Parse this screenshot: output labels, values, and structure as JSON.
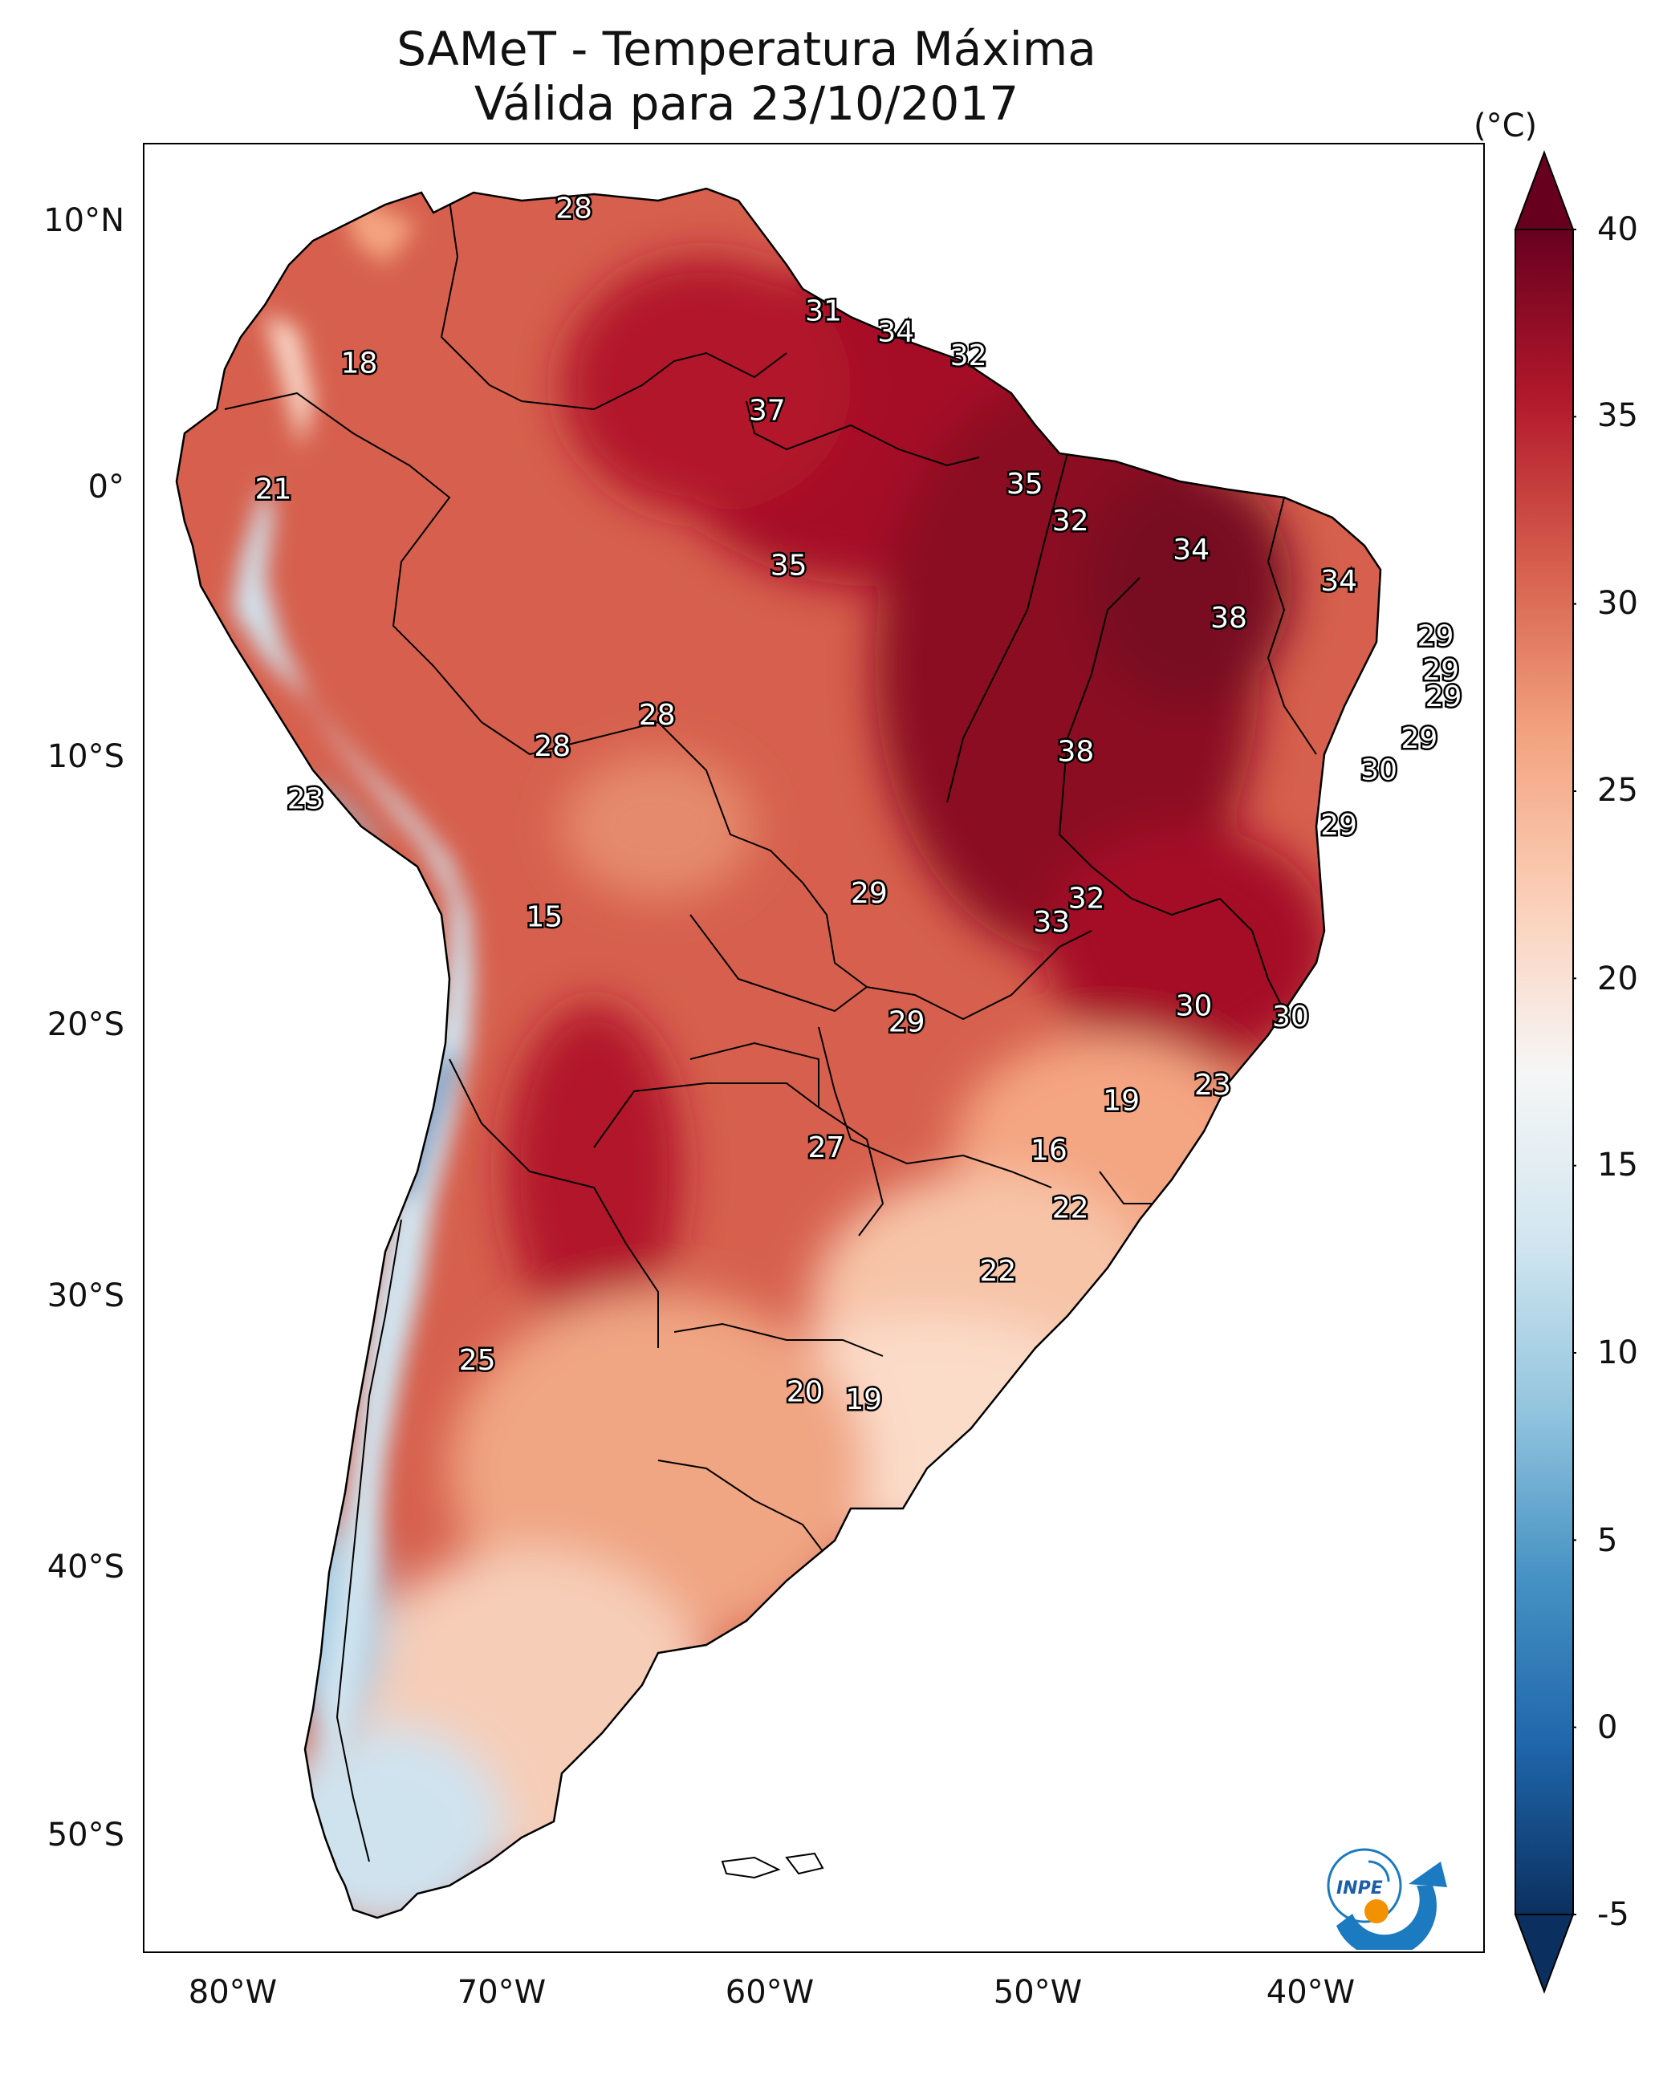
{
  "title": {
    "line1": "SAMeT - Temperatura Máxima",
    "line2": "Válida para 23/10/2017"
  },
  "colorbar": {
    "unit": "(°C)",
    "ticks": [
      "40",
      "35",
      "30",
      "25",
      "20",
      "15",
      "10",
      "5",
      "0",
      "-5"
    ],
    "colors": [
      "#0b305f",
      "#1f66ab",
      "#4692c4",
      "#93c5de",
      "#d2e6f0",
      "#f6f6f6",
      "#fbd0b9",
      "#f3a380",
      "#d65f4d",
      "#b2182b",
      "#67001f"
    ]
  },
  "axes": {
    "lat_labels": [
      "10°N",
      "0°",
      "10°S",
      "20°S",
      "30°S",
      "40°S",
      "50°S"
    ],
    "lon_labels": [
      "80°W",
      "70°W",
      "60°W",
      "50°W",
      "40°W"
    ]
  },
  "chart_data": {
    "type": "heatmap",
    "title": "SAMeT - Temperatura Máxima — Válida para 23/10/2017",
    "lon_range": [
      -83,
      -33
    ],
    "lat_range": [
      -56,
      13
    ],
    "value_range": [
      -5,
      40
    ],
    "station_values": [
      {
        "lon": -67.0,
        "lat": 10.5,
        "value": "28"
      },
      {
        "lon": -57.7,
        "lat": 6.6,
        "value": "31"
      },
      {
        "lon": -55.0,
        "lat": 5.8,
        "value": "34"
      },
      {
        "lon": -52.3,
        "lat": 4.9,
        "value": "32"
      },
      {
        "lon": -75.0,
        "lat": 4.6,
        "value": "18"
      },
      {
        "lon": -59.8,
        "lat": 2.8,
        "value": "37"
      },
      {
        "lon": -78.2,
        "lat": -0.2,
        "value": "21"
      },
      {
        "lon": -50.2,
        "lat": 0.0,
        "value": "35"
      },
      {
        "lon": -48.5,
        "lat": -1.4,
        "value": "32"
      },
      {
        "lon": -59.0,
        "lat": -3.1,
        "value": "35"
      },
      {
        "lon": -44.0,
        "lat": -2.5,
        "value": "34"
      },
      {
        "lon": -38.5,
        "lat": -3.7,
        "value": "34"
      },
      {
        "lon": -42.6,
        "lat": -5.1,
        "value": "38"
      },
      {
        "lon": -34.9,
        "lat": -5.8,
        "value": "29"
      },
      {
        "lon": -34.7,
        "lat": -7.1,
        "value": "29"
      },
      {
        "lon": -34.6,
        "lat": -8.1,
        "value": "29"
      },
      {
        "lon": -63.9,
        "lat": -8.8,
        "value": "28"
      },
      {
        "lon": -67.8,
        "lat": -10.0,
        "value": "28"
      },
      {
        "lon": -48.3,
        "lat": -10.2,
        "value": "38"
      },
      {
        "lon": -35.5,
        "lat": -9.7,
        "value": "29"
      },
      {
        "lon": -37.0,
        "lat": -10.9,
        "value": "30"
      },
      {
        "lon": -77.0,
        "lat": -12.0,
        "value": "23"
      },
      {
        "lon": -38.5,
        "lat": -13.0,
        "value": "29"
      },
      {
        "lon": -56.0,
        "lat": -15.6,
        "value": "29"
      },
      {
        "lon": -47.9,
        "lat": -15.8,
        "value": "32"
      },
      {
        "lon": -49.2,
        "lat": -16.7,
        "value": "33"
      },
      {
        "lon": -68.1,
        "lat": -16.5,
        "value": "15"
      },
      {
        "lon": -43.9,
        "lat": -19.9,
        "value": "30"
      },
      {
        "lon": -40.3,
        "lat": -20.3,
        "value": "30"
      },
      {
        "lon": -54.6,
        "lat": -20.5,
        "value": "29"
      },
      {
        "lon": -43.2,
        "lat": -22.9,
        "value": "23"
      },
      {
        "lon": -46.6,
        "lat": -23.5,
        "value": "19"
      },
      {
        "lon": -57.6,
        "lat": -25.3,
        "value": "27"
      },
      {
        "lon": -49.3,
        "lat": -25.4,
        "value": "16"
      },
      {
        "lon": -48.5,
        "lat": -27.6,
        "value": "22"
      },
      {
        "lon": -51.2,
        "lat": -30.0,
        "value": "22"
      },
      {
        "lon": -70.6,
        "lat": -33.4,
        "value": "25"
      },
      {
        "lon": -58.4,
        "lat": -34.6,
        "value": "20"
      },
      {
        "lon": -56.2,
        "lat": -34.9,
        "value": "19"
      }
    ]
  }
}
